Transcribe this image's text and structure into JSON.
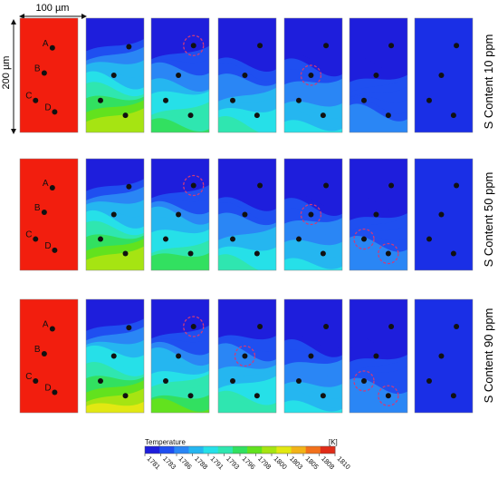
{
  "dimension_labels": {
    "width": "100 µm",
    "height": "200 µm"
  },
  "rows": [
    {
      "label": "S Content 10 ppm",
      "point_labels": [
        "A",
        "B",
        "C",
        "D"
      ],
      "panels": [
        {
          "front": 0.0,
          "points": [
            [
              0.56,
              0.26
            ],
            [
              0.42,
              0.48
            ],
            [
              0.27,
              0.72
            ],
            [
              0.6,
              0.82
            ]
          ],
          "circles": []
        },
        {
          "front": 0.33,
          "points": [
            [
              0.74,
              0.25
            ],
            [
              0.48,
              0.5
            ],
            [
              0.25,
              0.72
            ],
            [
              0.68,
              0.85
            ]
          ],
          "circles": []
        },
        {
          "front": 0.52,
          "points": [
            [
              0.73,
              0.24
            ],
            [
              0.47,
              0.5
            ],
            [
              0.25,
              0.72
            ],
            [
              0.68,
              0.85
            ]
          ],
          "circles": [
            0
          ]
        },
        {
          "front": 0.62,
          "points": [
            [
              0.72,
              0.24
            ],
            [
              0.46,
              0.5
            ],
            [
              0.25,
              0.72
            ],
            [
              0.67,
              0.85
            ]
          ],
          "circles": []
        },
        {
          "front": 0.7,
          "points": [
            [
              0.72,
              0.24
            ],
            [
              0.46,
              0.5
            ],
            [
              0.25,
              0.72
            ],
            [
              0.67,
              0.85
            ]
          ],
          "circles": [
            1
          ]
        },
        {
          "front": 0.83,
          "points": [
            [
              0.72,
              0.24
            ],
            [
              0.46,
              0.5
            ],
            [
              0.25,
              0.72
            ],
            [
              0.67,
              0.85
            ]
          ],
          "circles": []
        },
        {
          "front": 1.0,
          "points": [
            [
              0.72,
              0.24
            ],
            [
              0.46,
              0.5
            ],
            [
              0.25,
              0.72
            ],
            [
              0.67,
              0.85
            ]
          ],
          "circles": []
        }
      ]
    },
    {
      "label": "S Content 50 ppm",
      "point_labels": [
        "A",
        "B",
        "C",
        "D"
      ],
      "panels": [
        {
          "front": 0.0,
          "points": [
            [
              0.56,
              0.26
            ],
            [
              0.42,
              0.48
            ],
            [
              0.27,
              0.72
            ],
            [
              0.6,
              0.82
            ]
          ],
          "circles": []
        },
        {
          "front": 0.33,
          "points": [
            [
              0.74,
              0.25
            ],
            [
              0.48,
              0.5
            ],
            [
              0.25,
              0.72
            ],
            [
              0.68,
              0.85
            ]
          ],
          "circles": []
        },
        {
          "front": 0.5,
          "points": [
            [
              0.73,
              0.24
            ],
            [
              0.47,
              0.5
            ],
            [
              0.25,
              0.72
            ],
            [
              0.68,
              0.85
            ]
          ],
          "circles": [
            0
          ]
        },
        {
          "front": 0.62,
          "points": [
            [
              0.72,
              0.24
            ],
            [
              0.46,
              0.5
            ],
            [
              0.25,
              0.72
            ],
            [
              0.67,
              0.85
            ]
          ],
          "circles": []
        },
        {
          "front": 0.7,
          "points": [
            [
              0.72,
              0.24
            ],
            [
              0.46,
              0.5
            ],
            [
              0.25,
              0.72
            ],
            [
              0.67,
              0.85
            ]
          ],
          "circles": [
            1
          ]
        },
        {
          "front": 0.8,
          "points": [
            [
              0.72,
              0.24
            ],
            [
              0.46,
              0.5
            ],
            [
              0.25,
              0.72
            ],
            [
              0.67,
              0.85
            ]
          ],
          "circles": [
            2,
            3
          ]
        },
        {
          "front": 1.0,
          "points": [
            [
              0.72,
              0.24
            ],
            [
              0.46,
              0.5
            ],
            [
              0.25,
              0.72
            ],
            [
              0.67,
              0.85
            ]
          ],
          "circles": []
        }
      ]
    },
    {
      "label": "S Content 90 ppm",
      "point_labels": [
        "A",
        "B",
        "C",
        "D"
      ],
      "panels": [
        {
          "front": 0.0,
          "points": [
            [
              0.56,
              0.26
            ],
            [
              0.42,
              0.48
            ],
            [
              0.27,
              0.72
            ],
            [
              0.6,
              0.82
            ]
          ],
          "circles": []
        },
        {
          "front": 0.3,
          "points": [
            [
              0.74,
              0.25
            ],
            [
              0.48,
              0.5
            ],
            [
              0.25,
              0.72
            ],
            [
              0.68,
              0.85
            ]
          ],
          "circles": []
        },
        {
          "front": 0.48,
          "points": [
            [
              0.73,
              0.24
            ],
            [
              0.47,
              0.5
            ],
            [
              0.25,
              0.72
            ],
            [
              0.68,
              0.85
            ]
          ],
          "circles": [
            0
          ]
        },
        {
          "front": 0.6,
          "points": [
            [
              0.72,
              0.24
            ],
            [
              0.46,
              0.5
            ],
            [
              0.25,
              0.72
            ],
            [
              0.67,
              0.85
            ]
          ],
          "circles": [
            1
          ]
        },
        {
          "front": 0.7,
          "points": [
            [
              0.72,
              0.24
            ],
            [
              0.46,
              0.5
            ],
            [
              0.25,
              0.72
            ],
            [
              0.67,
              0.85
            ]
          ],
          "circles": []
        },
        {
          "front": 0.8,
          "points": [
            [
              0.72,
              0.24
            ],
            [
              0.46,
              0.5
            ],
            [
              0.25,
              0.72
            ],
            [
              0.67,
              0.85
            ]
          ],
          "circles": [
            2,
            3
          ]
        },
        {
          "front": 1.0,
          "points": [
            [
              0.72,
              0.24
            ],
            [
              0.46,
              0.5
            ],
            [
              0.25,
              0.72
            ],
            [
              0.67,
              0.85
            ]
          ],
          "circles": []
        }
      ]
    }
  ],
  "colorbar": {
    "title": "Temperature",
    "unit": "[K]",
    "ticks": [
      "1781",
      "1783",
      "1786",
      "1788",
      "1791",
      "1793",
      "1796",
      "1798",
      "1800",
      "1803",
      "1805",
      "1808",
      "1810"
    ],
    "colors": [
      "#1e1edc",
      "#1f4ff0",
      "#2a86f5",
      "#25b6f0",
      "#26e0e8",
      "#2fe6b0",
      "#32e060",
      "#62e21e",
      "#a6e412",
      "#e2e812",
      "#f2b318",
      "#f2711c",
      "#e02c18"
    ]
  },
  "colors": {
    "min": "#1a2fe6",
    "max": "#f21e0e",
    "marker": "#111111",
    "circle": "#d03a7a"
  }
}
